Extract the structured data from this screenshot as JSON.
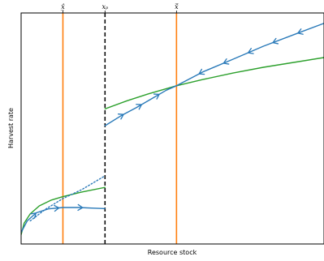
{
  "chart_data": {
    "type": "line",
    "title": "",
    "xlabel": "Resource stock",
    "ylabel": "Harvest rate",
    "xlim": [
      0,
      1
    ],
    "ylim": [
      0,
      1
    ],
    "grid": false,
    "legend": "none",
    "colors": {
      "trajectory": "#2a7ab9",
      "curve": "#2ca02c",
      "equilibrium": "#ff7f0e",
      "threshold": "#000000"
    },
    "top_ticks": [
      {
        "label": "x̲̂",
        "x": 0.138
      },
      {
        "label": "xₚ",
        "x": 0.277
      },
      {
        "label": "x̂̅",
        "x": 0.513
      }
    ],
    "vertical_lines": [
      {
        "name": "lower-equilibrium",
        "x": 0.138,
        "style": "solid",
        "color": "equilibrium"
      },
      {
        "name": "threshold",
        "x": 0.277,
        "style": "dashed",
        "color": "threshold"
      },
      {
        "name": "upper-equilibrium",
        "x": 0.513,
        "style": "solid",
        "color": "equilibrium"
      }
    ],
    "series": [
      {
        "color": "curve",
        "style": "solid",
        "points": [
          [
            0.0,
            0.04
          ],
          [
            0.01,
            0.09
          ],
          [
            0.03,
            0.13
          ],
          [
            0.06,
            0.165
          ],
          [
            0.1,
            0.19
          ],
          [
            0.138,
            0.205
          ],
          [
            0.2,
            0.225
          ],
          [
            0.277,
            0.245
          ]
        ]
      },
      {
        "color": "trajectory",
        "style": "dotted",
        "points": [
          [
            0.03,
            0.1
          ],
          [
            0.08,
            0.15
          ],
          [
            0.138,
            0.197
          ],
          [
            0.2,
            0.235
          ],
          [
            0.277,
            0.295
          ]
        ]
      },
      {
        "color": "trajectory",
        "style": "solid",
        "arrows": "forward",
        "points": [
          [
            0.0,
            0.05
          ],
          [
            0.02,
            0.1
          ],
          [
            0.05,
            0.135
          ],
          [
            0.09,
            0.152
          ],
          [
            0.138,
            0.158
          ],
          [
            0.19,
            0.158
          ],
          [
            0.24,
            0.155
          ],
          [
            0.277,
            0.153
          ]
        ]
      },
      {
        "color": "curve",
        "style": "solid",
        "points": [
          [
            0.277,
            0.585
          ],
          [
            0.35,
            0.62
          ],
          [
            0.42,
            0.65
          ],
          [
            0.513,
            0.685
          ],
          [
            0.6,
            0.712
          ],
          [
            0.7,
            0.74
          ],
          [
            0.8,
            0.765
          ],
          [
            0.9,
            0.786
          ],
          [
            1.0,
            0.807
          ]
        ]
      },
      {
        "color": "trajectory",
        "style": "solid",
        "arrows": "forward",
        "points": [
          [
            0.277,
            0.512
          ],
          [
            0.33,
            0.555
          ],
          [
            0.38,
            0.59
          ],
          [
            0.43,
            0.628
          ],
          [
            0.48,
            0.666
          ],
          [
            0.513,
            0.685
          ]
        ]
      },
      {
        "color": "trajectory",
        "style": "solid",
        "arrows": "backward",
        "points": [
          [
            0.513,
            0.685
          ],
          [
            0.6,
            0.745
          ],
          [
            0.7,
            0.8
          ],
          [
            0.8,
            0.856
          ],
          [
            0.9,
            0.906
          ],
          [
            1.0,
            0.955
          ]
        ]
      }
    ]
  }
}
